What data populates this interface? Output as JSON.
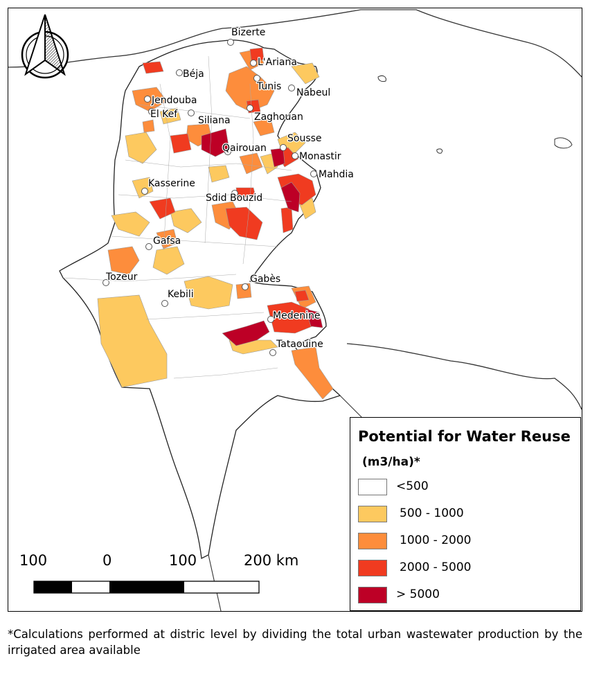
{
  "cities": [
    {
      "name": "Bizerte"
    },
    {
      "name": "L'Ariana"
    },
    {
      "name": "Béja"
    },
    {
      "name": "Tunis"
    },
    {
      "name": "Nabeul"
    },
    {
      "name": "Jendouba"
    },
    {
      "name": "El Kef"
    },
    {
      "name": "Zaghouan"
    },
    {
      "name": "Siliana"
    },
    {
      "name": "Sousse"
    },
    {
      "name": "Qairouan"
    },
    {
      "name": "Monastir"
    },
    {
      "name": "Mahdia"
    },
    {
      "name": "Kasserine"
    },
    {
      "name": "Sdid Bouzid"
    },
    {
      "name": "Gafsa"
    },
    {
      "name": "Tozeur"
    },
    {
      "name": "Gabès"
    },
    {
      "name": "Kebili"
    },
    {
      "name": "Medenine"
    },
    {
      "name": "Tataouine"
    }
  ],
  "legend": {
    "title": "Potential for Water Reuse",
    "subtitle": "(m3/ha)*",
    "classes": [
      {
        "label": "<500",
        "color": "#ffffff"
      },
      {
        "label": "500 - 1000",
        "color": "#fdc95f"
      },
      {
        "label": "1000 - 2000",
        "color": "#fd8d3c"
      },
      {
        "label": "2000 - 5000",
        "color": "#f03b20"
      },
      {
        "label": "> 5000",
        "color": "#bd0026"
      }
    ]
  },
  "scale_bar": {
    "labels": [
      "100",
      "0",
      "100",
      "200 km"
    ]
  },
  "north_arrow": {
    "icon": "north-arrow-icon"
  },
  "footnote": "*Calculations performed at distric level by dividing the total urban wastewater production by the irrigated area available"
}
